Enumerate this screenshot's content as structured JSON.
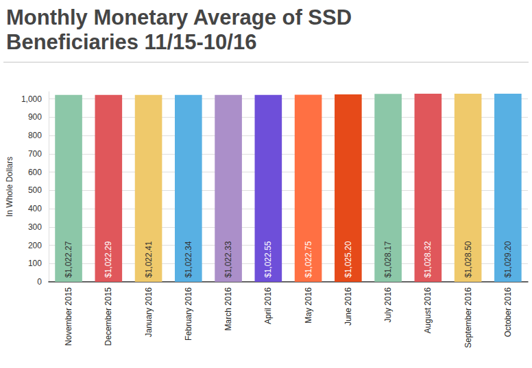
{
  "chart_data": {
    "type": "bar",
    "title": "Monthly Monetary Average of SSD\nBeneficiaries 11/15-10/16",
    "y_label": "In Whole Dollars",
    "categories": [
      "November 2015",
      "December 2015",
      "January 2016",
      "February 2016",
      "March 2016",
      "April 2016",
      "May 2016",
      "June 2016",
      "July 2016",
      "August 2016",
      "September 2016",
      "October 2016"
    ],
    "values": [
      1022.27,
      1022.29,
      1022.41,
      1022.34,
      1022.33,
      1022.55,
      1022.75,
      1025.2,
      1028.17,
      1028.32,
      1028.5,
      1029.2
    ],
    "value_labels": [
      "$1,022.27",
      "$1,022.29",
      "$1,022.41",
      "$1,022.34",
      "$1,022.33",
      "$1,022.55",
      "$1,022.75",
      "$1,025.20",
      "$1,028.17",
      "$1,028.32",
      "$1,028.50",
      "$1,029.20"
    ],
    "colors": [
      "#8cc7a8",
      "#e0575b",
      "#efc96b",
      "#58b0e3",
      "#ab8fc9",
      "#6e4fd9",
      "#ff7043",
      "#e64a19",
      "#8cc7a8",
      "#e0575b",
      "#efc96b",
      "#58b0e3"
    ],
    "data_labels": true,
    "ylim": [
      0,
      1040
    ],
    "yticks": [
      0,
      100,
      200,
      300,
      400,
      500,
      600,
      700,
      800,
      900,
      {
        "value": 1000,
        "label": "1,000"
      }
    ],
    "grid": true
  }
}
